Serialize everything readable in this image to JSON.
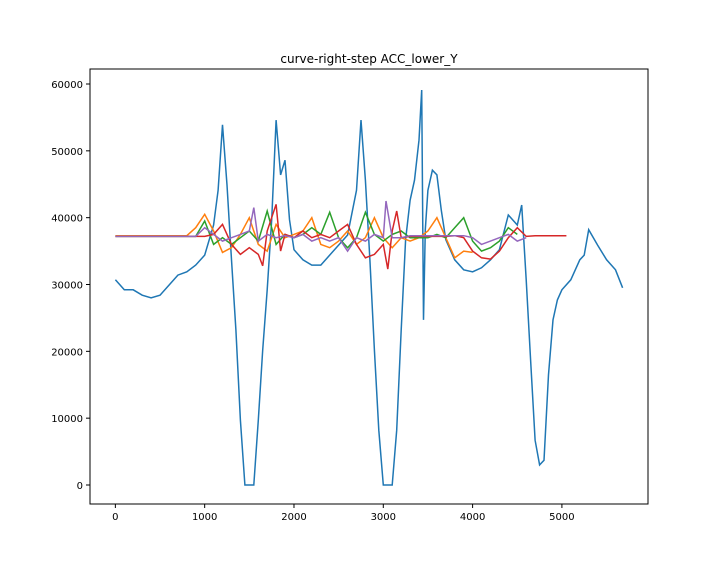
{
  "chart_data": {
    "type": "line",
    "title": "curve-right-step ACC_lower_Y",
    "xlim": [
      -284,
      5964
    ],
    "ylim": [
      -2843,
      62245
    ],
    "xticks": [
      0,
      1000,
      2000,
      3000,
      4000,
      5000
    ],
    "yticks": [
      0,
      10000,
      20000,
      30000,
      40000,
      50000,
      60000
    ],
    "series": [
      {
        "color": "#1f77b4",
        "x": [
          0,
          100,
          200,
          300,
          400,
          500,
          600,
          700,
          800,
          900,
          1000,
          1100,
          1150,
          1200,
          1250,
          1300,
          1350,
          1400,
          1450,
          1500,
          1550,
          1600,
          1650,
          1700,
          1750,
          1800,
          1850,
          1900,
          1950,
          2000,
          2100,
          2200,
          2300,
          2400,
          2500,
          2600,
          2700,
          2750,
          2800,
          2850,
          2900,
          2950,
          3000,
          3050,
          3100,
          3150,
          3200,
          3250,
          3300,
          3350,
          3400,
          3430,
          3450,
          3470,
          3500,
          3550,
          3600,
          3650,
          3700,
          3800,
          3900,
          4000,
          4100,
          4200,
          4300,
          4400,
          4500,
          4550,
          4600,
          4650,
          4700,
          4750,
          4800,
          4850,
          4900,
          4950,
          5000,
          5100,
          5200,
          5250,
          5300,
          5400,
          5500,
          5600,
          5680
        ],
        "values": [
          30700,
          29200,
          29200,
          28400,
          28000,
          28400,
          29900,
          31400,
          31900,
          32900,
          34400,
          38900,
          44100,
          53900,
          44900,
          33700,
          23200,
          9700,
          0,
          0,
          0,
          9700,
          20200,
          29200,
          39700,
          54600,
          46400,
          48600,
          39700,
          35200,
          33700,
          32900,
          32900,
          34400,
          35900,
          37400,
          44100,
          54600,
          45600,
          33700,
          20200,
          8200,
          0,
          0,
          0,
          8200,
          23200,
          36700,
          42600,
          45600,
          51600,
          59100,
          24700,
          38200,
          44100,
          47100,
          46400,
          41100,
          36700,
          33700,
          32200,
          31900,
          32500,
          33700,
          35200,
          40400,
          38900,
          41900,
          30700,
          18700,
          6700,
          3000,
          3700,
          16500,
          24700,
          27700,
          29200,
          30700,
          33700,
          34400,
          38200,
          35900,
          33700,
          32200,
          29500
        ]
      },
      {
        "color": "#ff7f0e",
        "x": [
          0,
          100,
          200,
          300,
          400,
          500,
          600,
          700,
          800,
          900,
          1000,
          1100,
          1200,
          1300,
          1400,
          1500,
          1600,
          1700,
          1800,
          1900,
          2000,
          2100,
          2200,
          2300,
          2400,
          2500,
          2600,
          2700,
          2800,
          2900,
          3000,
          3100,
          3200,
          3300,
          3400,
          3500,
          3600,
          3700,
          3800,
          3900,
          4000
        ],
        "values": [
          37300,
          37300,
          37300,
          37300,
          37300,
          37300,
          37300,
          37300,
          37300,
          38500,
          40500,
          38000,
          34800,
          35500,
          37500,
          40000,
          36000,
          35000,
          39000,
          37000,
          37500,
          38000,
          40000,
          36000,
          35500,
          36500,
          38000,
          36000,
          37000,
          40000,
          37000,
          35500,
          37000,
          36500,
          37000,
          38000,
          40000,
          37000,
          34000,
          35000,
          34800
        ]
      },
      {
        "color": "#2ca02c",
        "x": [
          0,
          100,
          200,
          300,
          400,
          500,
          600,
          700,
          800,
          900,
          1000,
          1100,
          1200,
          1300,
          1400,
          1500,
          1600,
          1700,
          1800,
          1900,
          2000,
          2100,
          2200,
          2300,
          2400,
          2500,
          2600,
          2700,
          2800,
          2900,
          3000,
          3100,
          3200,
          3300,
          3400,
          3500,
          3600,
          3700,
          3800,
          3900,
          4000,
          4100,
          4200,
          4300,
          4400,
          4500
        ],
        "values": [
          37200,
          37200,
          37200,
          37200,
          37200,
          37200,
          37200,
          37200,
          37200,
          37200,
          39500,
          36000,
          37000,
          36000,
          37000,
          38000,
          36500,
          41000,
          36000,
          37500,
          37000,
          37500,
          38500,
          37500,
          40800,
          37000,
          35500,
          37000,
          40800,
          37500,
          36500,
          37500,
          38000,
          37000,
          37000,
          37000,
          37500,
          37000,
          38500,
          40000,
          36500,
          35000,
          35500,
          36500,
          38500,
          37500
        ]
      },
      {
        "color": "#d62728",
        "x": [
          0,
          100,
          200,
          300,
          400,
          500,
          600,
          700,
          800,
          900,
          1000,
          1100,
          1200,
          1300,
          1400,
          1500,
          1600,
          1650,
          1700,
          1800,
          1850,
          1900,
          2000,
          2100,
          2200,
          2300,
          2400,
          2500,
          2600,
          2700,
          2800,
          2900,
          3000,
          3050,
          3100,
          3150,
          3200,
          3300,
          3400,
          3500,
          3600,
          3700,
          3800,
          3900,
          4000,
          4100,
          4200,
          4300,
          4400,
          4500,
          4600,
          4700,
          4800,
          4900,
          5000,
          5050
        ],
        "values": [
          37200,
          37200,
          37200,
          37200,
          37200,
          37200,
          37200,
          37200,
          37200,
          37200,
          37200,
          37500,
          39000,
          36000,
          34500,
          35500,
          34500,
          32800,
          38000,
          42000,
          35000,
          37500,
          37000,
          38000,
          37000,
          37500,
          37000,
          38000,
          39000,
          36000,
          34000,
          34500,
          36000,
          32300,
          38000,
          41000,
          37000,
          37200,
          37200,
          37200,
          37200,
          37200,
          37300,
          37000,
          35000,
          34000,
          33800,
          35000,
          37000,
          38500,
          37200,
          37300,
          37300,
          37300,
          37300,
          37300
        ]
      },
      {
        "color": "#9467bd",
        "x": [
          0,
          100,
          200,
          300,
          400,
          500,
          600,
          700,
          800,
          900,
          1000,
          1100,
          1200,
          1300,
          1400,
          1500,
          1550,
          1600,
          1700,
          1800,
          1900,
          2000,
          2100,
          2200,
          2300,
          2400,
          2500,
          2600,
          2700,
          2800,
          2900,
          3000,
          3030,
          3100,
          3200,
          3300,
          3400,
          3500,
          3600,
          3700,
          3800,
          3900,
          4000,
          4100,
          4200,
          4300,
          4400,
          4500,
          4600
        ],
        "values": [
          37200,
          37200,
          37200,
          37200,
          37200,
          37200,
          37200,
          37200,
          37200,
          37200,
          38500,
          37500,
          36500,
          37000,
          37500,
          38000,
          41500,
          36500,
          37500,
          37000,
          37300,
          37000,
          37500,
          36500,
          37000,
          36500,
          37000,
          35000,
          37000,
          36500,
          37500,
          37000,
          42500,
          37000,
          37000,
          37300,
          37300,
          37300,
          37300,
          37300,
          37300,
          37300,
          37000,
          36000,
          36500,
          37000,
          37500,
          36500,
          37000
        ]
      }
    ]
  }
}
